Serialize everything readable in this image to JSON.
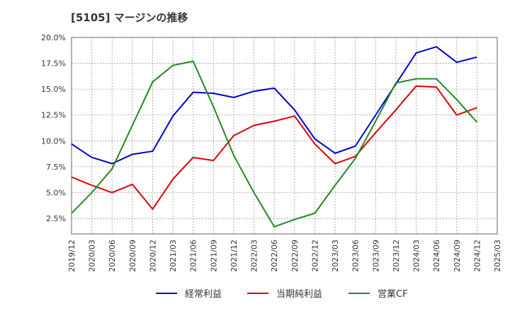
{
  "chart_data": {
    "type": "line",
    "title": "[5105]  マージンの推移",
    "xlabel": "",
    "ylabel": "",
    "ylim": [
      1.0,
      20.0
    ],
    "grid": true,
    "legend_placement": "bottom",
    "y_ticks": [
      "2.5%",
      "5.0%",
      "7.5%",
      "10.0%",
      "12.5%",
      "15.0%",
      "17.5%",
      "20.0%"
    ],
    "y_tick_values": [
      2.5,
      5.0,
      7.5,
      10.0,
      12.5,
      15.0,
      17.5,
      20.0
    ],
    "x_ticks": [
      "2019/12",
      "2020/03",
      "2020/06",
      "2020/09",
      "2020/12",
      "2021/03",
      "2021/06",
      "2021/09",
      "2021/12",
      "2022/03",
      "2022/06",
      "2022/09",
      "2022/12",
      "2023/03",
      "2023/06",
      "2023/09",
      "2023/12",
      "2024/03",
      "2024/06",
      "2024/09",
      "2024/12",
      "2025/03"
    ],
    "x": [
      "2019/12",
      "2020/03",
      "2020/06",
      "2020/09",
      "2020/12",
      "2021/03",
      "2021/06",
      "2021/09",
      "2021/12",
      "2022/03",
      "2022/06",
      "2022/09",
      "2022/12",
      "2023/03",
      "2023/06",
      "2023/09",
      "2023/12",
      "2024/03",
      "2024/06",
      "2024/09",
      "2024/12"
    ],
    "series": [
      {
        "name": "経常利益",
        "color": "#0000cc",
        "values": [
          9.7,
          8.4,
          7.8,
          8.7,
          9.0,
          12.4,
          14.7,
          14.6,
          14.2,
          14.8,
          15.1,
          13.0,
          10.2,
          8.8,
          9.5,
          12.5,
          15.5,
          18.5,
          19.1,
          17.6,
          18.1
        ]
      },
      {
        "name": "当期純利益",
        "color": "#dd0000",
        "values": [
          6.5,
          5.7,
          5.0,
          5.8,
          3.4,
          6.3,
          8.4,
          8.1,
          10.5,
          11.5,
          11.9,
          12.4,
          9.7,
          7.8,
          8.5,
          10.8,
          13.0,
          15.3,
          15.2,
          12.5,
          13.2
        ]
      },
      {
        "name": "営業CF",
        "color": "#228822",
        "values": [
          3.0,
          5.0,
          7.3,
          11.5,
          15.7,
          17.3,
          17.7,
          13.3,
          8.6,
          5.0,
          1.7,
          2.4,
          3.0,
          5.7,
          8.3,
          11.9,
          15.6,
          16.0,
          16.0,
          14.0,
          11.8
        ]
      }
    ]
  }
}
